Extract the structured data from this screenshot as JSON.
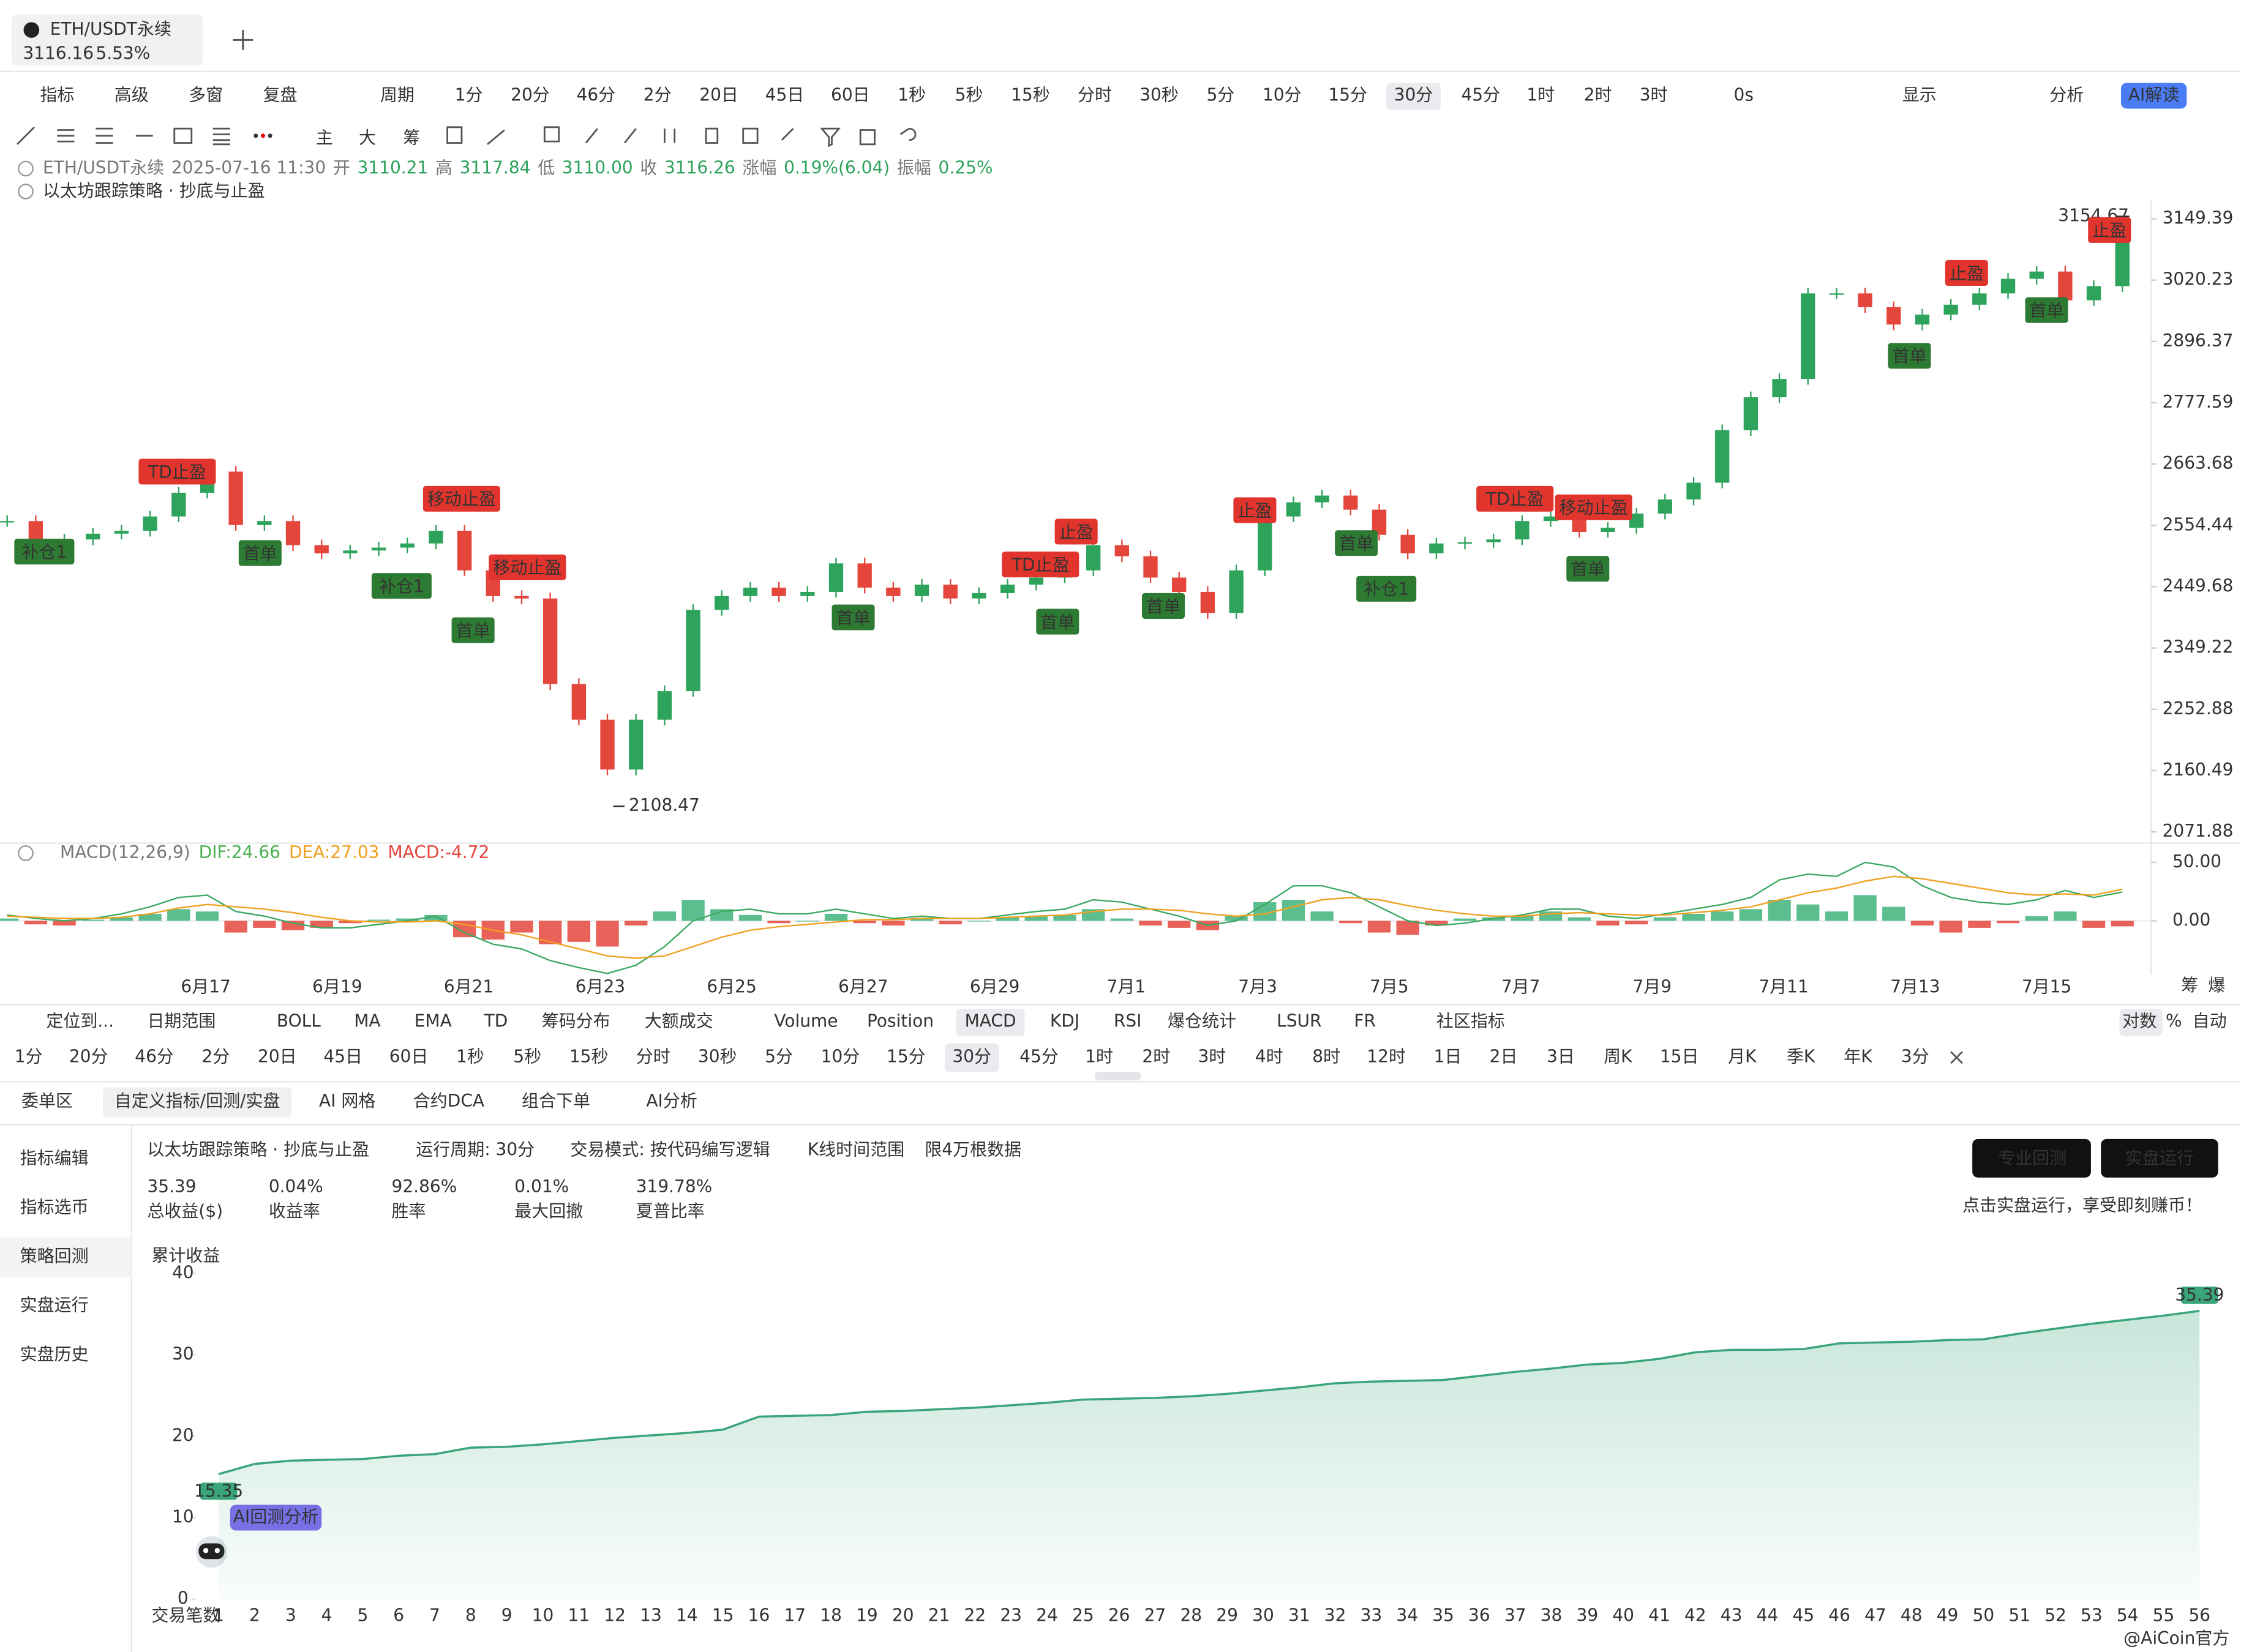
{
  "ui": {
    "tab": {
      "symbol": "ETH/USDT永续",
      "price": "3116.16",
      "change": "5.53%"
    },
    "toolbar": [
      "指标",
      "高级",
      "多窗",
      "复盘",
      "周期",
      "1分",
      "20分",
      "46分",
      "2分",
      "20日",
      "45日",
      "60日",
      "1秒",
      "5秒",
      "15秒",
      "分时",
      "30秒",
      "5分",
      "10分",
      "15分",
      "30分",
      "45分",
      "1时",
      "2时",
      "3时",
      "0s",
      "显示",
      "分析",
      "AI解读"
    ],
    "draw_tools": [
      "主",
      "大",
      "筹"
    ],
    "info": {
      "symbol": "ETH/USDT永续",
      "time": "2025-07-16 11:30",
      "open_label": "开",
      "open": "3110.21",
      "high_label": "高",
      "high": "3117.84",
      "low_label": "低",
      "low": "3110.00",
      "close_label": "收",
      "close": "3116.26",
      "change_label": "涨幅",
      "change": "0.19%(6.04)",
      "amp_label": "振幅",
      "amp": "0.25%"
    },
    "strategy_name": "以太坊跟踪策略 · 抄底与止盈",
    "indicator_tabs": [
      "定位到...",
      "日期范围",
      "BOLL",
      "MA",
      "EMA",
      "TD",
      "筹码分布",
      "大额成交",
      "Volume",
      "Position",
      "MACD",
      "KDJ",
      "RSI",
      "爆仓统计",
      "LSUR",
      "FR",
      "社区指标"
    ],
    "axis_modes": [
      "对数",
      "%",
      "自动"
    ],
    "periods": [
      "1分",
      "20分",
      "46分",
      "2分",
      "20日",
      "45日",
      "60日",
      "1秒",
      "5秒",
      "15秒",
      "分时",
      "30秒",
      "5分",
      "10分",
      "15分",
      "30分",
      "45分",
      "1时",
      "2时",
      "3时",
      "4时",
      "8时",
      "12时",
      "1日",
      "2日",
      "3日",
      "周K",
      "15日",
      "月K",
      "季K",
      "年K",
      "3分"
    ],
    "panel_marks": [
      "筹",
      "爆"
    ],
    "bottom_tabs": [
      "委单区",
      "自定义指标/回测/实盘",
      "AI 网格",
      "合约DCA",
      "组合下单",
      "AI分析"
    ],
    "sidebar": [
      "指标编辑",
      "指标选币",
      "策略回测",
      "实盘运行",
      "实盘历史"
    ],
    "backtest_bar": {
      "strategy": "以太坊跟踪策略 · 抄底与止盈",
      "period": "运行周期: 30分",
      "mode": "交易模式: 按代码编写逻辑",
      "range": "K线时间范围",
      "limit": "限4万根数据",
      "buttons": [
        "专业回测",
        "实盘运行"
      ],
      "hint": "点击实盘运行，享受即刻赚币！"
    },
    "stats": [
      {
        "value": "35.39",
        "label": "总收益($)"
      },
      {
        "value": "0.04%",
        "label": "收益率"
      },
      {
        "value": "92.86%",
        "label": "胜率"
      },
      {
        "value": "0.01%",
        "label": "最大回撤"
      },
      {
        "value": "319.78%",
        "label": "夏普比率"
      }
    ],
    "ai_badge": "AI回测分析",
    "watermark": "@AiCoin官方"
  },
  "chart_data": [
    {
      "type": "candlestick",
      "title": "ETH/USDT永续",
      "log": true,
      "values": [
        2562,
        2530,
        2530,
        2540,
        2545,
        2570,
        2612,
        2650,
        2555,
        2562,
        2520,
        2506,
        2511,
        2516,
        2523,
        2545,
        2477,
        2434,
        2430,
        2292,
        2237,
        2162,
        2237,
        2281,
        2411,
        2434,
        2448,
        2434,
        2441,
        2489,
        2448,
        2434,
        2453,
        2430,
        2439,
        2453,
        2465,
        2477,
        2520,
        2501,
        2465,
        2441,
        2406,
        2477,
        2570,
        2595,
        2607,
        2582,
        2538,
        2506,
        2523,
        2525,
        2530,
        2562,
        2570,
        2543,
        2550,
        2575,
        2600,
        2630,
        2726,
        2788,
        2823,
        2993,
        2993,
        2965,
        2930,
        2950,
        2970,
        2993,
        3023,
        3038,
        2979,
        3008,
        3116.26
      ],
      "up_color": "#2ea35c",
      "down_color": "#e5463c",
      "ylim": [
        2056,
        3190
      ],
      "yticks": [
        3149.39,
        3020.23,
        2896.37,
        2777.59,
        2663.68,
        2554.44,
        2449.68,
        2349.22,
        2252.88,
        2160.49,
        2071.88
      ],
      "xticks": [
        "6月17",
        "6月19",
        "6月21",
        "6月23",
        "6月25",
        "6月27",
        "6月29",
        "7月1",
        "7月3",
        "7月5",
        "7月7",
        "7月9",
        "7月11",
        "7月13",
        "7月15"
      ],
      "high": 3154.67,
      "low": 2108.47,
      "signals": [
        {
          "label": "TD止盈",
          "color": "#e0342c"
        },
        {
          "label": "补仓1",
          "color": "#2d7a33"
        },
        {
          "label": "首单",
          "color": "#2d7a33"
        },
        {
          "label": "移动止盈",
          "color": "#e0342c"
        },
        {
          "label": "补仓1",
          "color": "#2d7a33"
        },
        {
          "label": "移动止盈",
          "color": "#e0342c"
        },
        {
          "label": "首单",
          "color": "#2d7a33"
        },
        {
          "label": "首单",
          "color": "#2d7a33"
        },
        {
          "label": "TD止盈",
          "color": "#e0342c"
        },
        {
          "label": "止盈",
          "color": "#e0342c"
        },
        {
          "label": "首单",
          "color": "#2d7a33"
        },
        {
          "label": "首单",
          "color": "#2d7a33"
        },
        {
          "label": "止盈",
          "color": "#e0342c"
        },
        {
          "label": "首单",
          "color": "#2d7a33"
        },
        {
          "label": "补仓1",
          "color": "#2d7a33"
        },
        {
          "label": "TD止盈",
          "color": "#e0342c"
        },
        {
          "label": "移动止盈",
          "color": "#e0342c"
        },
        {
          "label": "首单",
          "color": "#2d7a33"
        },
        {
          "label": "止盈",
          "color": "#e0342c"
        },
        {
          "label": "首单",
          "color": "#2d7a33"
        },
        {
          "label": "首单",
          "color": "#2d7a33"
        },
        {
          "label": "止盈",
          "color": "#e0342c"
        }
      ]
    },
    {
      "type": "macd",
      "title": "MACD(12,26,9)",
      "legend": [
        {
          "text": "DIF:24.66",
          "color": "#4caf50"
        },
        {
          "text": "DEA:27.03",
          "color": "#f0a020"
        },
        {
          "text": "MACD:-4.72",
          "color": "#e5463c"
        }
      ],
      "hist": [
        2,
        -3,
        -4,
        1,
        3,
        6,
        10,
        8,
        -10,
        -6,
        -8,
        -6,
        -2,
        1,
        2,
        5,
        -14,
        -16,
        -10,
        -20,
        -18,
        -22,
        -4,
        8,
        18,
        10,
        5,
        -2,
        0,
        6,
        -2,
        -4,
        2,
        -3,
        0,
        3,
        4,
        5,
        10,
        2,
        -4,
        -6,
        -8,
        4,
        16,
        18,
        8,
        -2,
        -10,
        -12,
        -4,
        2,
        3,
        4,
        8,
        3,
        -4,
        -3,
        3,
        6,
        8,
        10,
        18,
        14,
        8,
        22,
        12,
        -4,
        -10,
        -6,
        -2,
        4,
        8,
        -6,
        -4.72
      ],
      "series": [
        {
          "name": "DIF",
          "color": "#3aa860",
          "values": [
            5,
            2,
            0,
            2,
            6,
            12,
            20,
            22,
            8,
            4,
            -2,
            -6,
            -6,
            -3,
            0,
            4,
            -10,
            -20,
            -24,
            -34,
            -40,
            -45,
            -38,
            -22,
            0,
            8,
            10,
            6,
            6,
            10,
            6,
            2,
            4,
            2,
            2,
            5,
            8,
            10,
            18,
            16,
            10,
            4,
            -4,
            0,
            14,
            30,
            30,
            24,
            12,
            0,
            -4,
            -2,
            2,
            5,
            10,
            10,
            4,
            2,
            6,
            10,
            14,
            20,
            35,
            40,
            38,
            50,
            46,
            30,
            20,
            16,
            14,
            18,
            26,
            20,
            24.66
          ]
        },
        {
          "name": "DEA",
          "color": "#f0a020",
          "values": [
            4,
            3,
            2,
            2,
            3,
            6,
            11,
            14,
            12,
            10,
            7,
            3,
            0,
            -1,
            -1,
            0,
            -3,
            -8,
            -12,
            -18,
            -24,
            -30,
            -32,
            -30,
            -22,
            -14,
            -8,
            -5,
            -3,
            -1,
            1,
            1,
            2,
            2,
            2,
            3,
            4,
            5,
            8,
            10,
            10,
            9,
            6,
            4,
            6,
            12,
            18,
            20,
            18,
            13,
            9,
            6,
            4,
            4,
            6,
            7,
            6,
            5,
            5,
            7,
            9,
            12,
            18,
            24,
            28,
            34,
            38,
            36,
            32,
            28,
            24,
            22,
            23,
            22,
            27.03
          ]
        }
      ],
      "pos_color": "#3fb37a",
      "neg_color": "#e5463c",
      "ylim": [
        -46,
        64
      ],
      "yticks": [
        {
          "value": 50,
          "label": "50.00"
        },
        {
          "value": 0,
          "label": "0.00"
        }
      ]
    },
    {
      "type": "area",
      "y_label": "累计收益",
      "x_label": "交易笔数",
      "color": "#3aa57a",
      "x": [
        1,
        2,
        3,
        4,
        5,
        6,
        7,
        8,
        9,
        10,
        11,
        12,
        13,
        14,
        15,
        16,
        17,
        18,
        19,
        20,
        21,
        22,
        23,
        24,
        25,
        26,
        27,
        28,
        29,
        30,
        31,
        32,
        33,
        34,
        35,
        36,
        37,
        38,
        39,
        40,
        41,
        42,
        43,
        44,
        45,
        46,
        47,
        48,
        49,
        50,
        51,
        52,
        53,
        54,
        55,
        56
      ],
      "values": [
        15.35,
        16.6,
        17.0,
        17.1,
        17.2,
        17.6,
        17.8,
        18.6,
        18.7,
        19.0,
        19.4,
        19.8,
        20.1,
        20.4,
        20.8,
        22.4,
        22.5,
        22.6,
        23.0,
        23.1,
        23.3,
        23.5,
        23.8,
        24.1,
        24.5,
        24.6,
        24.7,
        24.9,
        25.2,
        25.6,
        26.0,
        26.5,
        26.7,
        26.8,
        26.9,
        27.4,
        27.9,
        28.3,
        28.8,
        29.0,
        29.5,
        30.3,
        30.6,
        30.6,
        30.7,
        31.4,
        31.5,
        31.6,
        31.8,
        31.9,
        32.6,
        33.2,
        33.8,
        34.3,
        34.8,
        35.39
      ],
      "xlim": [
        1,
        56
      ],
      "ylim": [
        0,
        40
      ],
      "yticks": [
        0,
        10,
        20,
        30,
        40
      ]
    }
  ]
}
